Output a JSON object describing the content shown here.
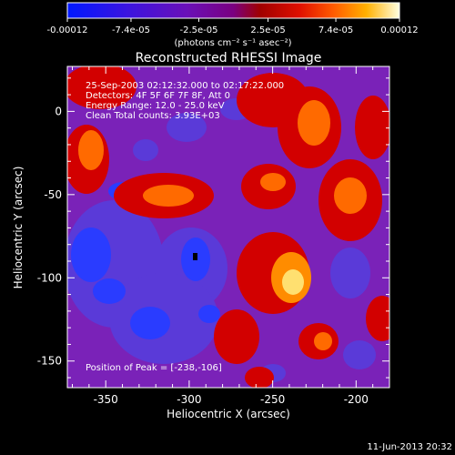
{
  "chart_data": {
    "type": "heatmap",
    "title": "Reconstructed RHESSI Image",
    "xlabel": "Heliocentric X (arcsec)",
    "ylabel": "Heliocentric Y (arcsec)",
    "xlim": [
      -373,
      -180
    ],
    "ylim": [
      -166,
      27
    ],
    "x_ticks": [
      -350,
      -300,
      -250,
      -200
    ],
    "x_tick_labels": [
      "-350",
      "-300",
      "-250",
      "-200"
    ],
    "y_ticks": [
      0,
      -50,
      -100,
      -150
    ],
    "y_tick_labels": [
      "0",
      "-50",
      "-100",
      "-150"
    ],
    "colorbar": {
      "range": [
        -0.00012,
        0.00012
      ],
      "tick_labels": [
        "-0.00012",
        "-7.4e-05",
        "-2.5e-05",
        "2.5e-05",
        "7.4e-05",
        "0.00012"
      ],
      "unit_label": "(photons cm⁻² s⁻¹ asec⁻²)"
    },
    "annotations": [
      "25-Sep-2003 02:12:32.000 to 02:17:22.000",
      "Detectors: 4F 5F 6F 7F 8F, Att 0",
      "Energy Range: 12.0 - 25.0 keV",
      "Clean     Total counts: 3.93E+03"
    ],
    "peak_label": "Position of Peak = [-238,-106]",
    "footer_date": "11-Jun-2013 20:32",
    "grid": false
  }
}
